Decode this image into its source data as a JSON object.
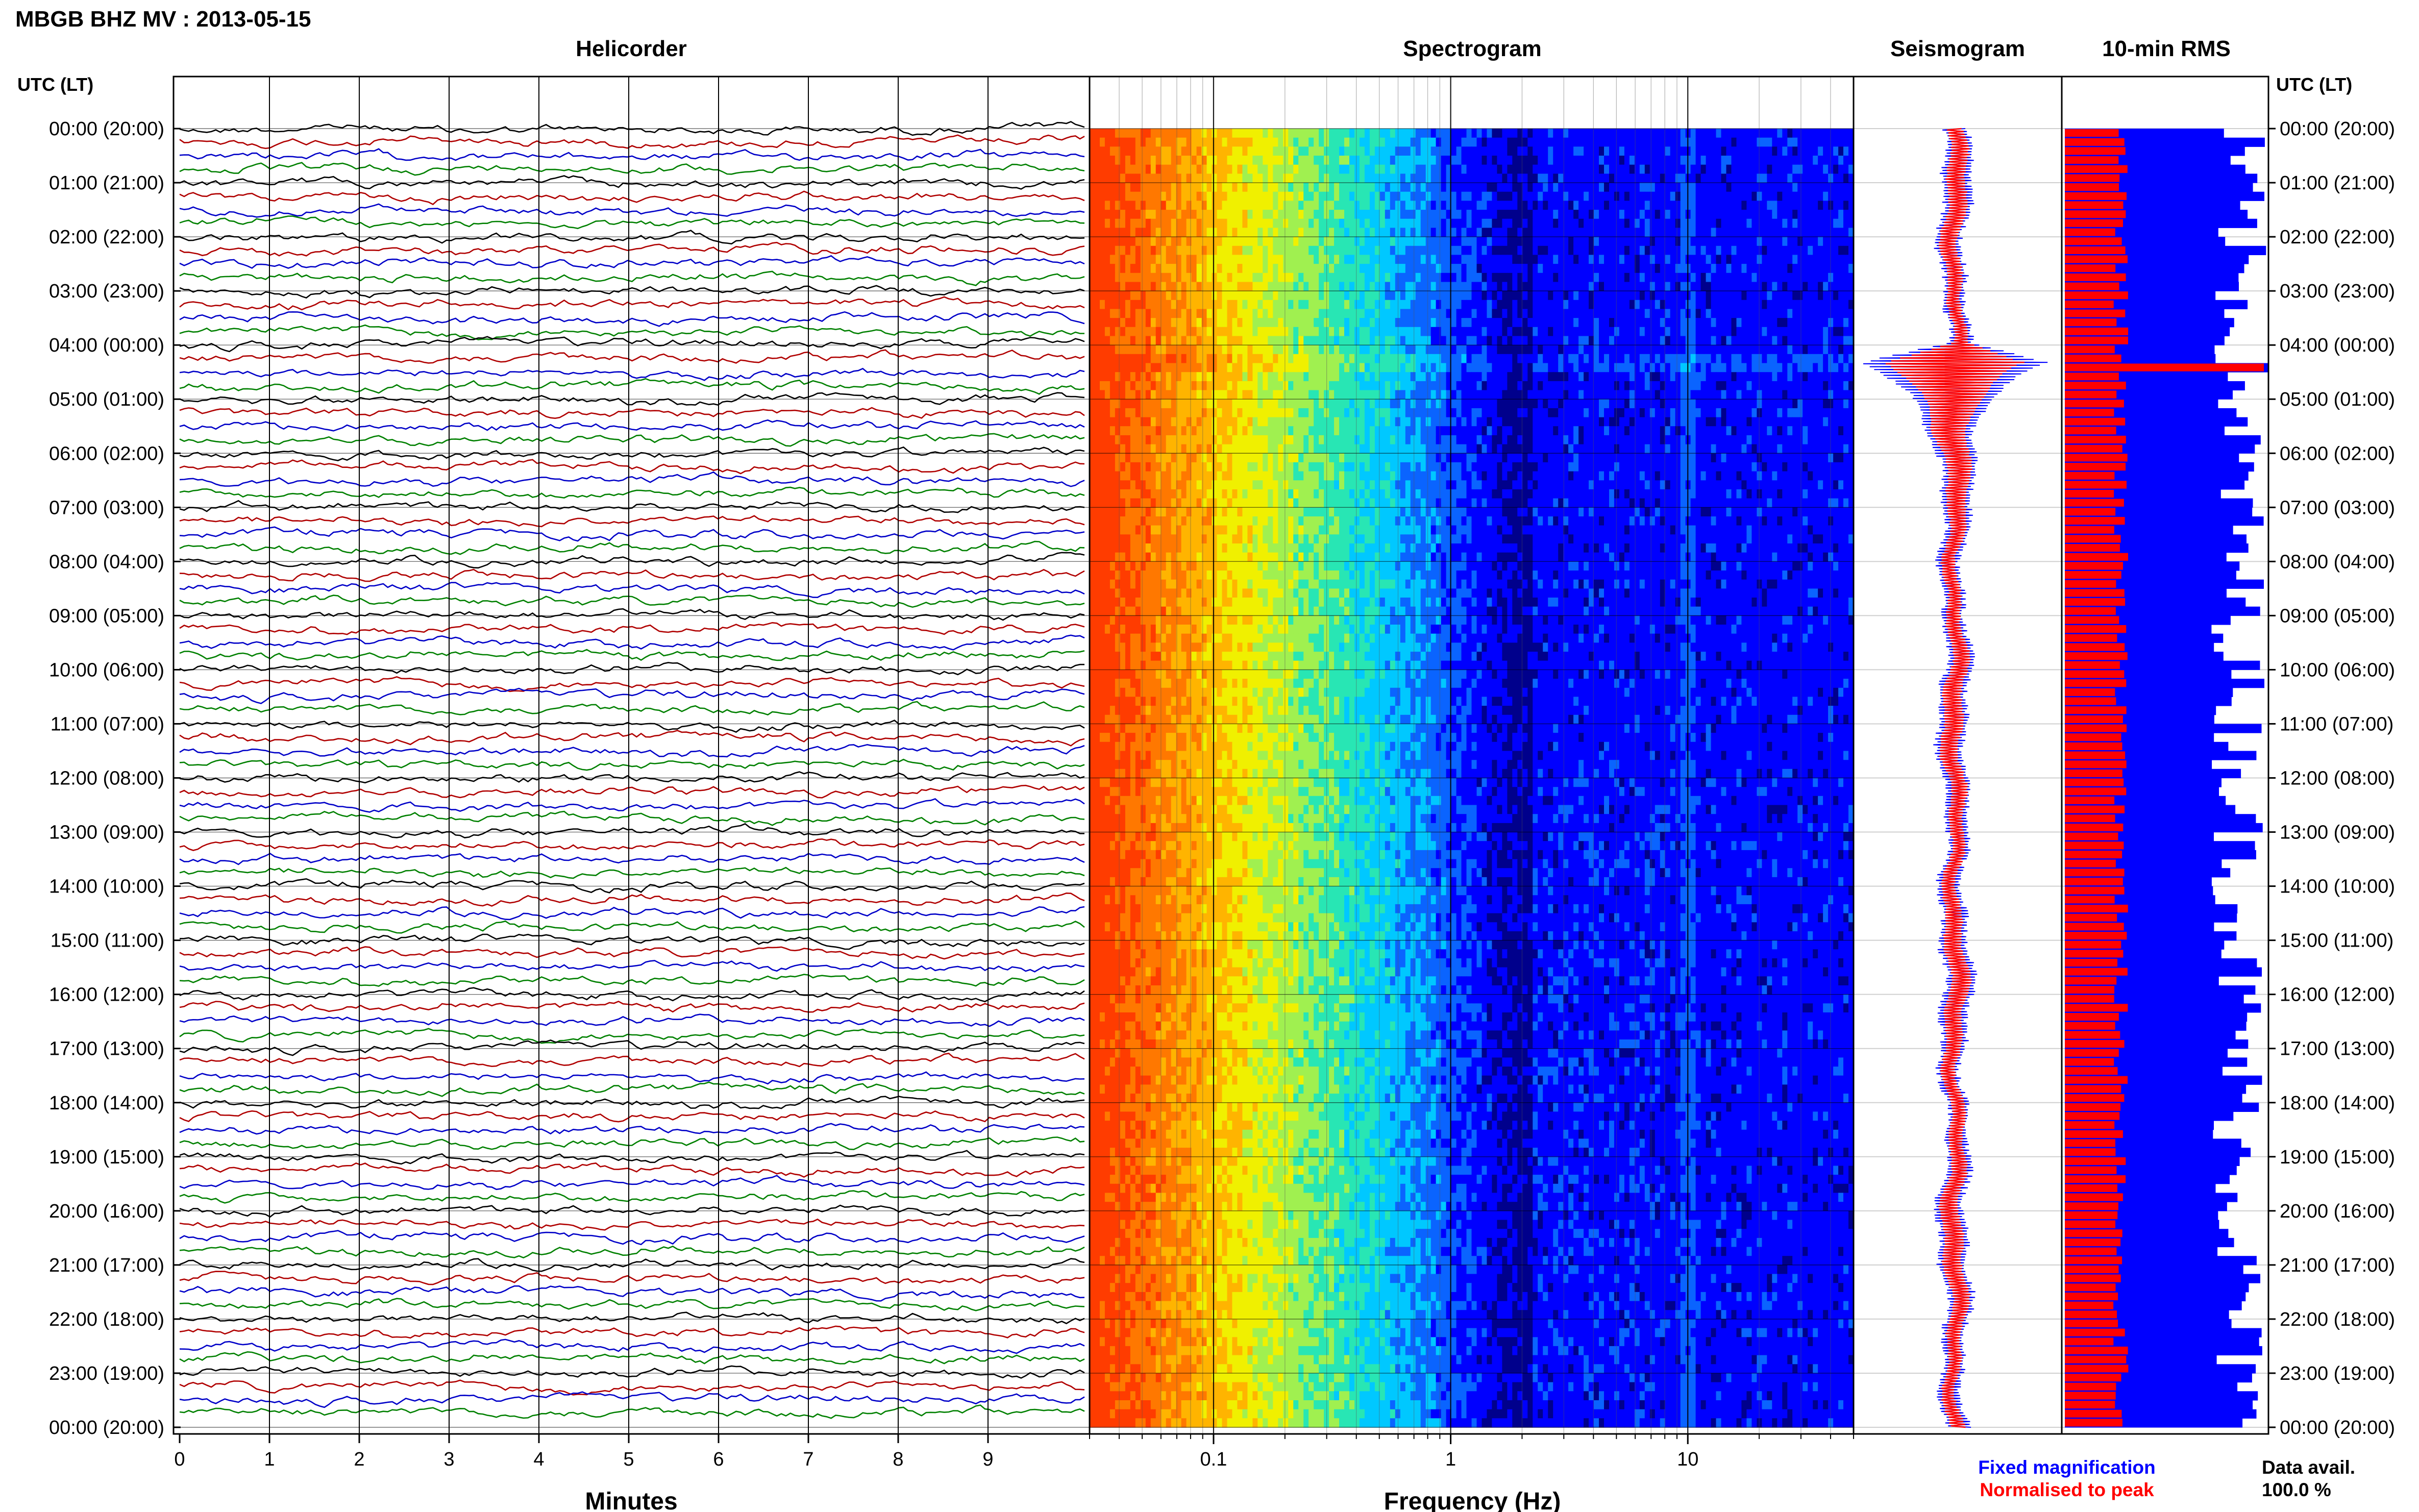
{
  "header": {
    "title": "MBGB BHZ MV : 2013-05-15"
  },
  "panels": {
    "helicorder": "Helicorder",
    "spectrogram": "Spectrogram",
    "seismogram": "Seismogram",
    "rms": "10-min RMS"
  },
  "axis": {
    "time_label": "UTC (LT)",
    "time_ticks": [
      "00:00 (20:00)",
      "01:00 (21:00)",
      "02:00 (22:00)",
      "03:00 (23:00)",
      "04:00 (00:00)",
      "05:00 (01:00)",
      "06:00 (02:00)",
      "07:00 (03:00)",
      "08:00 (04:00)",
      "09:00 (05:00)",
      "10:00 (06:00)",
      "11:00 (07:00)",
      "12:00 (08:00)",
      "13:00 (09:00)",
      "14:00 (10:00)",
      "15:00 (11:00)",
      "16:00 (12:00)",
      "17:00 (13:00)",
      "18:00 (14:00)",
      "19:00 (15:00)",
      "20:00 (16:00)",
      "21:00 (17:00)",
      "22:00 (18:00)",
      "23:00 (19:00)",
      "00:00 (20:00)"
    ],
    "minutes_label": "Minutes",
    "minutes_ticks": [
      "0",
      "1",
      "2",
      "3",
      "4",
      "5",
      "6",
      "7",
      "8",
      "9"
    ],
    "freq_label": "Frequency (Hz)",
    "freq_ticks": [
      "0.1",
      "1",
      "10"
    ]
  },
  "legend": {
    "fixed": "Fixed magnification",
    "normalised": "Normalised to peak",
    "fixed_color": "#0000ff",
    "normalised_color": "#ff0000"
  },
  "availability": {
    "label": "Data avail.",
    "value": "100.0 %"
  },
  "chart_data": [
    {
      "type": "line",
      "title": "Helicorder",
      "xlabel": "Minutes",
      "xlim": [
        0,
        10
      ],
      "rows": 96,
      "trace_colors": [
        "#000000",
        "#b00000",
        "#0000c8",
        "#008000"
      ],
      "ylabel": "UTC (LT)"
    },
    {
      "type": "heatmap",
      "title": "Spectrogram",
      "xlabel": "Frequency (Hz)",
      "xscale": "log",
      "xlim": [
        0.03,
        50
      ],
      "xticks": [
        0.1,
        1,
        10
      ],
      "colormap": [
        "#00008c",
        "#0000ff",
        "#0a64ff",
        "#00c8ff",
        "#28e6b4",
        "#a0f050",
        "#f0f000",
        "#ffb400",
        "#ff7800",
        "#ff3c00"
      ]
    },
    {
      "type": "line",
      "title": "Seismogram",
      "series": [
        {
          "name": "Fixed magnification",
          "color": "#0000ff"
        },
        {
          "name": "Normalised to peak",
          "color": "#ff0000"
        }
      ],
      "peak_time_utc": "04:15"
    },
    {
      "type": "bar",
      "title": "10-min RMS",
      "series": [
        {
          "name": "Fixed magnification",
          "color": "#0000ff"
        },
        {
          "name": "Normalised to peak",
          "color": "#ff0000"
        }
      ],
      "bins": 144
    }
  ]
}
